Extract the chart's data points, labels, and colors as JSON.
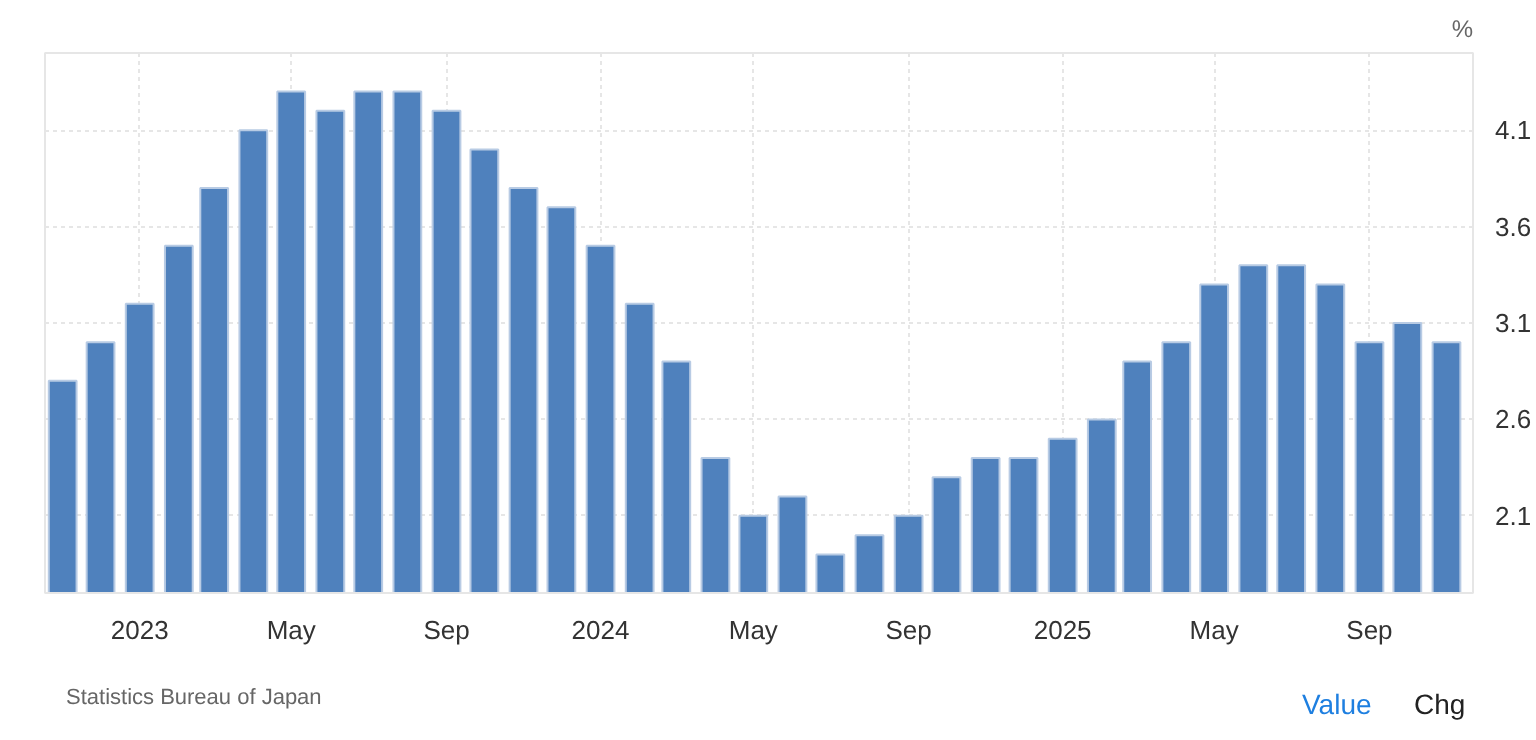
{
  "chart_data": {
    "type": "bar",
    "ylabel": "%",
    "x": [
      "2022-11",
      "2022-12",
      "2023-01",
      "2023-02",
      "2023-03",
      "2023-04",
      "2023-05",
      "2023-06",
      "2023-07",
      "2023-08",
      "2023-09",
      "2023-10",
      "2023-11",
      "2023-12",
      "2024-01",
      "2024-02",
      "2024-03",
      "2024-04",
      "2024-05",
      "2024-06",
      "2024-07",
      "2024-08",
      "2024-09",
      "2024-10",
      "2024-11",
      "2024-12",
      "2025-01",
      "2025-02",
      "2025-03",
      "2025-04",
      "2025-05",
      "2025-06",
      "2025-07",
      "2025-08",
      "2025-09",
      "2025-10",
      "2025-11"
    ],
    "values": [
      2.8,
      3.0,
      3.2,
      3.5,
      3.8,
      4.1,
      4.3,
      4.2,
      4.3,
      4.3,
      4.2,
      4.0,
      3.8,
      3.7,
      3.5,
      3.2,
      2.9,
      2.4,
      2.1,
      2.2,
      1.9,
      2.0,
      2.1,
      2.3,
      2.4,
      2.4,
      2.5,
      2.6,
      2.9,
      3.0,
      3.3,
      3.4,
      3.4,
      3.3,
      3.0,
      3.1,
      3.0
    ],
    "color": "#4f81bd",
    "ylim": [
      1.7,
      4.5
    ],
    "yticks": [
      2.1,
      2.6,
      3.1,
      3.6,
      4.1
    ],
    "xlim": [
      "2022-10-18",
      "2025-11-22"
    ],
    "xticks": [
      {
        "value": "2023-01",
        "label": "2023"
      },
      {
        "value": "2023-05",
        "label": "May"
      },
      {
        "value": "2023-09",
        "label": "Sep"
      },
      {
        "value": "2024-01",
        "label": "2024"
      },
      {
        "value": "2024-05",
        "label": "May"
      },
      {
        "value": "2024-09",
        "label": "Sep"
      },
      {
        "value": "2025-01",
        "label": "2025"
      },
      {
        "value": "2025-05",
        "label": "May"
      },
      {
        "value": "2025-09",
        "label": "Sep"
      }
    ],
    "grid": true,
    "annotations": [
      "Statistics Bureau of Japan",
      "Value",
      "Chg"
    ]
  }
}
